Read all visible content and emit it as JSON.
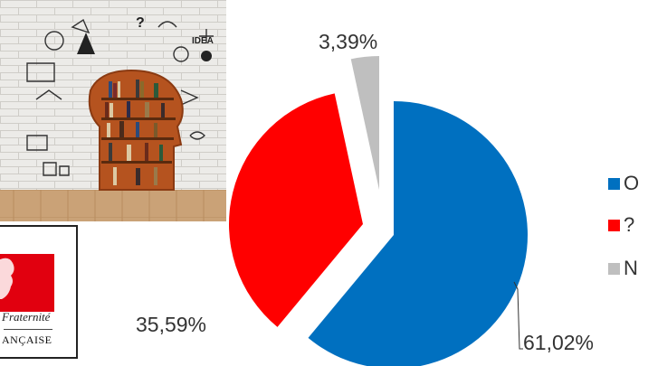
{
  "logo": {
    "motto": "Fraternité",
    "name": "ANÇAISE"
  },
  "chart_data": {
    "type": "pie",
    "title": "",
    "exploded": true,
    "slices": [
      {
        "label": "O",
        "value": 61.02,
        "display": "61,02%",
        "color": "#0070C0"
      },
      {
        "label": "?",
        "value": 35.59,
        "display": "35,59%",
        "color": "#FF0000"
      },
      {
        "label": "N",
        "value": 3.39,
        "display": "3,39%",
        "color": "#BFBFBF"
      }
    ],
    "legend": {
      "placement": "right",
      "entries": [
        "O",
        "?",
        "N"
      ]
    }
  }
}
